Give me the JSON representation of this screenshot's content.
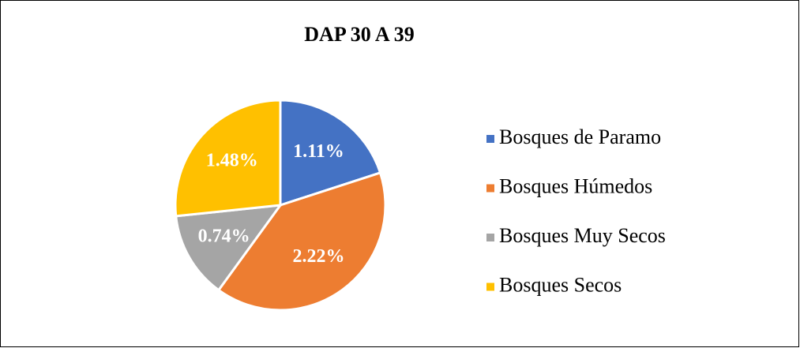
{
  "chart_data": {
    "type": "pie",
    "title": "DAP 30 A 39",
    "categories": [
      "Bosques de Paramo",
      "Bosques Húmedos",
      "Bosques Muy Secos",
      "Bosques Secos"
    ],
    "values": [
      1.11,
      2.22,
      0.74,
      1.48
    ],
    "value_labels": [
      "1.11%",
      "2.22%",
      "0.74%",
      "1.48%"
    ],
    "colors": [
      "#4472c4",
      "#ed7d31",
      "#a5a5a5",
      "#ffc000"
    ],
    "legend": "right"
  }
}
